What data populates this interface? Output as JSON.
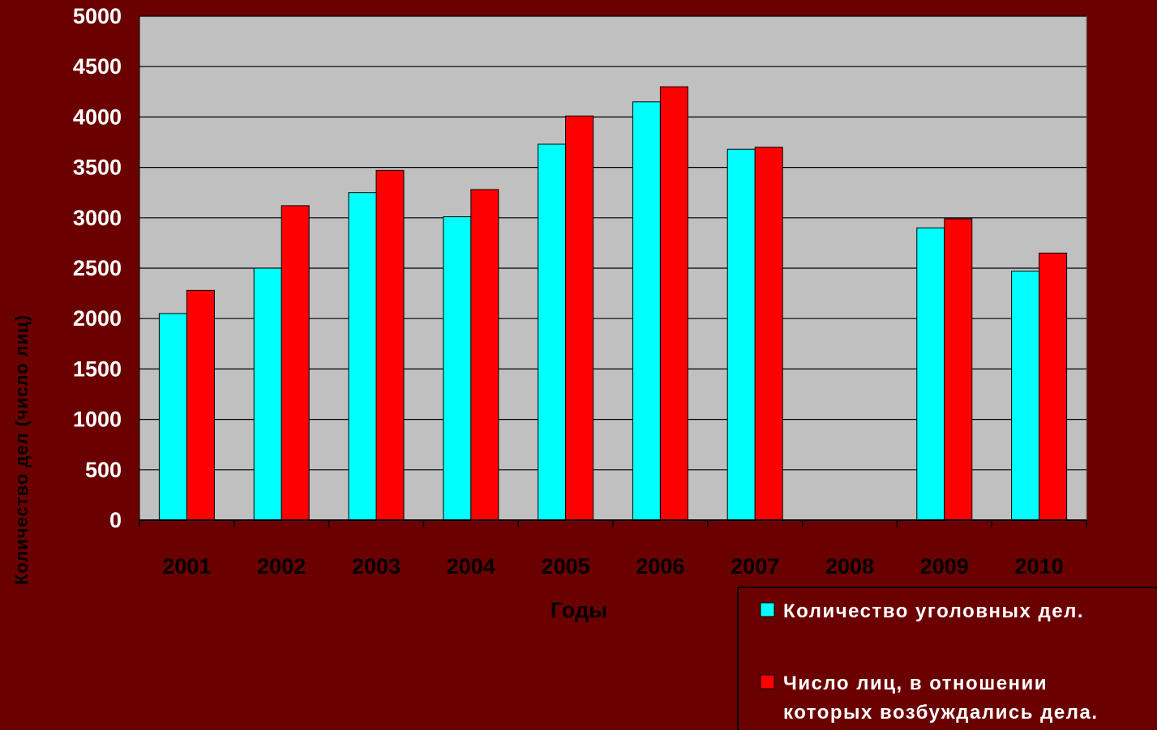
{
  "chart_data": {
    "type": "bar",
    "categories": [
      "2001",
      "2002",
      "2003",
      "2004",
      "2005",
      "2006",
      "2007",
      "2008",
      "2009",
      "2010"
    ],
    "series": [
      {
        "name": "Количество уголовных дел.",
        "color": "#00ffff",
        "values": [
          2050,
          2500,
          3250,
          3010,
          3730,
          4150,
          3680,
          null,
          2900,
          2470
        ]
      },
      {
        "name": "Число лиц, в отношении которых возбуждались дела.",
        "legend_lines": [
          "Число лиц, в отношении",
          "которых возбуждались дела."
        ],
        "color": "#ff0000",
        "values": [
          2280,
          3120,
          3470,
          3280,
          4010,
          4300,
          3700,
          null,
          2990,
          2650
        ]
      }
    ],
    "xlabel": "Годы",
    "ylabel": "Количество дел (число лиц)",
    "ylim": [
      0,
      5000
    ],
    "y_ticks": [
      "0",
      "500",
      "1000",
      "1500",
      "2000",
      "2500",
      "3000",
      "3500",
      "4000",
      "4500",
      "5000"
    ],
    "grid": true,
    "legend_position": "bottom-right",
    "colors": {
      "background": "#6b0000",
      "plot_area": "#c0c0c0",
      "gridline": "#000000",
      "tick_text": "#ffffff",
      "axis_title_text": "#000000"
    }
  }
}
